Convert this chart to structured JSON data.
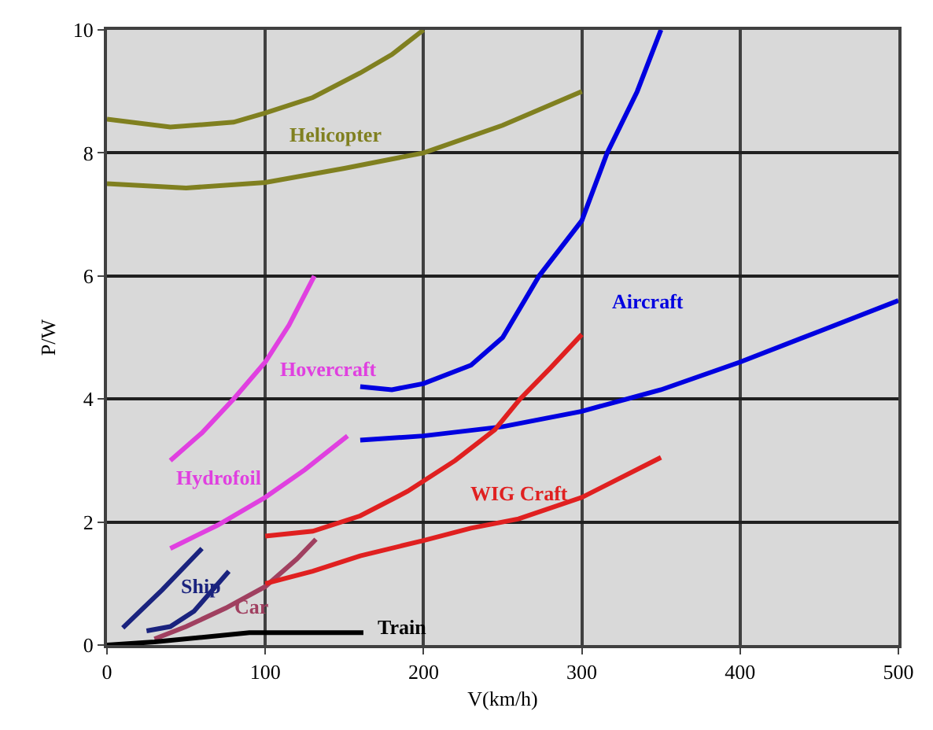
{
  "chart_data": {
    "type": "line",
    "xlabel": "V(km/h)",
    "ylabel": "P/W",
    "xlim": [
      0,
      500
    ],
    "ylim": [
      0,
      10
    ],
    "xticks": [
      0,
      100,
      200,
      300,
      400,
      500
    ],
    "yticks": [
      0,
      2,
      4,
      6,
      8,
      10
    ],
    "grid": true,
    "legend": false,
    "marker": "none",
    "line_style": "solid",
    "series": [
      {
        "name": "Helicopter",
        "color": "#808020",
        "x": [
          0,
          40,
          80,
          100,
          130,
          160,
          180,
          200
        ],
        "values": [
          8.55,
          8.42,
          8.5,
          8.65,
          8.9,
          9.3,
          9.6,
          10
        ]
      },
      {
        "color": "#808020",
        "x": [
          0,
          50,
          100,
          150,
          200,
          250,
          300
        ],
        "values": [
          7.5,
          7.43,
          7.52,
          7.75,
          8.0,
          8.45,
          9.0
        ]
      },
      {
        "name": "Aircraft",
        "color": "#0000e0",
        "x": [
          160,
          180,
          200,
          230,
          250,
          273,
          300,
          316,
          335,
          350
        ],
        "values": [
          4.2,
          4.15,
          4.25,
          4.55,
          5.0,
          6.0,
          6.9,
          8.0,
          9.0,
          10
        ]
      },
      {
        "color": "#0000e0",
        "x": [
          160,
          200,
          250,
          300,
          350,
          400,
          450,
          500
        ],
        "values": [
          3.33,
          3.4,
          3.55,
          3.8,
          4.15,
          4.6,
          5.1,
          5.6
        ]
      },
      {
        "name": "Hovercraft",
        "color": "#e040e0",
        "x": [
          40,
          60,
          80,
          100,
          115,
          131
        ],
        "values": [
          3.0,
          3.45,
          4.0,
          4.6,
          5.2,
          6.0
        ]
      },
      {
        "name": "Hydrofoil",
        "color": "#e040e0",
        "x": [
          40,
          70,
          100,
          125,
          152
        ],
        "values": [
          1.57,
          1.95,
          2.4,
          2.85,
          3.4
        ]
      },
      {
        "name": "Ship",
        "color": "#1a237e",
        "x": [
          10,
          35,
          60
        ],
        "values": [
          0.28,
          0.9,
          1.57
        ]
      },
      {
        "color": "#1a237e",
        "x": [
          25,
          40,
          55,
          77
        ],
        "values": [
          0.23,
          0.3,
          0.55,
          1.2
        ]
      },
      {
        "name": "Car",
        "color": "#a04060",
        "x": [
          30,
          50,
          75,
          100,
          120,
          132
        ],
        "values": [
          0.1,
          0.3,
          0.6,
          0.95,
          1.4,
          1.72
        ]
      },
      {
        "name": "Train",
        "color": "#000000",
        "x": [
          0,
          30,
          90,
          162
        ],
        "values": [
          0,
          0.05,
          0.2,
          0.2
        ]
      },
      {
        "name": "WIG Craft",
        "color": "#e02020",
        "x": [
          100,
          130,
          160,
          190,
          220,
          245,
          261,
          280,
          300
        ],
        "values": [
          1.77,
          1.85,
          2.1,
          2.5,
          3.0,
          3.5,
          4.0,
          4.5,
          5.05
        ]
      },
      {
        "color": "#e02020",
        "x": [
          100,
          130,
          160,
          200,
          230,
          260,
          300,
          350
        ],
        "values": [
          1.0,
          1.2,
          1.45,
          1.7,
          1.9,
          2.05,
          2.4,
          3.05
        ]
      }
    ]
  }
}
